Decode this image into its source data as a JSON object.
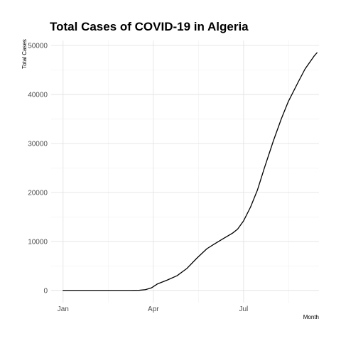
{
  "chart_data": {
    "type": "line",
    "title": "Total Cases of COVID-19 in Algeria",
    "xlabel": "Month",
    "ylabel": "Total Cases",
    "x_ticks": [
      {
        "label": "Jan",
        "value": "2020-01-01"
      },
      {
        "label": "Apr",
        "value": "2020-04-01"
      },
      {
        "label": "Jul",
        "value": "2020-07-01"
      }
    ],
    "y_ticks": [
      0,
      10000,
      20000,
      30000,
      40000,
      50000
    ],
    "xlim": [
      "2019-12-20",
      "2020-09-15"
    ],
    "ylim": [
      -2500,
      51000
    ],
    "grid": true,
    "legend": "none",
    "series": [
      {
        "color": "#000000",
        "points": [
          {
            "x": "2020-01-01",
            "y": 0
          },
          {
            "x": "2020-01-31",
            "y": 0
          },
          {
            "x": "2020-02-24",
            "y": 0
          },
          {
            "x": "2020-03-09",
            "y": 0
          },
          {
            "x": "2020-03-18",
            "y": 30
          },
          {
            "x": "2020-03-24",
            "y": 150
          },
          {
            "x": "2020-03-30",
            "y": 500
          },
          {
            "x": "2020-04-05",
            "y": 1300
          },
          {
            "x": "2020-04-15",
            "y": 2100
          },
          {
            "x": "2020-04-25",
            "y": 3000
          },
          {
            "x": "2020-05-05",
            "y": 4500
          },
          {
            "x": "2020-05-15",
            "y": 6600
          },
          {
            "x": "2020-05-25",
            "y": 8500
          },
          {
            "x": "2020-06-01",
            "y": 9400
          },
          {
            "x": "2020-06-10",
            "y": 10500
          },
          {
            "x": "2020-06-20",
            "y": 11700
          },
          {
            "x": "2020-06-25",
            "y": 12500
          },
          {
            "x": "2020-07-01",
            "y": 14200
          },
          {
            "x": "2020-07-08",
            "y": 17000
          },
          {
            "x": "2020-07-15",
            "y": 20500
          },
          {
            "x": "2020-07-22",
            "y": 25000
          },
          {
            "x": "2020-07-31",
            "y": 30500
          },
          {
            "x": "2020-08-08",
            "y": 35000
          },
          {
            "x": "2020-08-15",
            "y": 38500
          },
          {
            "x": "2020-08-25",
            "y": 42500
          },
          {
            "x": "2020-09-01",
            "y": 45200
          },
          {
            "x": "2020-09-10",
            "y": 47800
          },
          {
            "x": "2020-09-13",
            "y": 48500
          }
        ]
      }
    ]
  }
}
